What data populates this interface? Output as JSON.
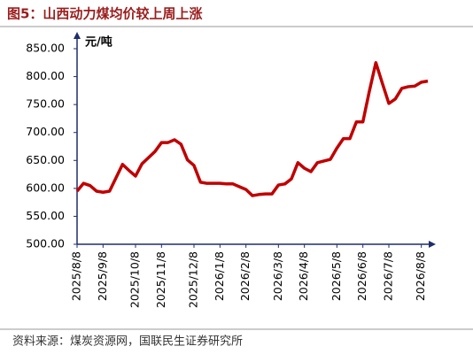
{
  "chart_data": {
    "type": "line",
    "title": "图5：山西动力煤均价较上周上涨",
    "y_unit": "元/吨",
    "source": "资料来源：煤炭资源网，国联民生证券研究所",
    "categories": [
      "2025/8/8",
      null,
      null,
      null,
      "2025/9/8",
      null,
      null,
      null,
      null,
      "2025/10/8",
      null,
      null,
      null,
      "2025/11/8",
      null,
      null,
      null,
      null,
      "2025/12/8",
      null,
      null,
      null,
      "2026/1/8",
      null,
      null,
      null,
      "2026/2/8",
      null,
      null,
      null,
      null,
      "2026/3/8",
      null,
      null,
      null,
      "2026/4/8",
      null,
      null,
      null,
      null,
      "2026/5/8",
      null,
      null,
      null,
      "2026/6/8",
      null,
      null,
      null,
      "2026/7/8",
      null,
      null,
      null,
      null,
      "2026/8/8",
      null
    ],
    "series": [
      {
        "name": "山西动力煤均价",
        "color": "#c00000",
        "values": [
          595,
          609,
          605,
          595,
          593,
          595,
          619,
          643,
          632,
          622,
          644,
          655,
          666,
          682,
          682,
          687,
          679,
          651,
          641,
          611,
          609,
          609,
          609,
          608,
          608,
          603,
          598,
          587,
          589,
          590,
          590,
          606,
          608,
          617,
          646,
          636,
          630,
          646,
          649,
          652,
          672,
          689,
          689,
          719,
          719,
          774,
          825,
          788,
          752,
          760,
          779,
          782,
          783,
          790,
          792
        ]
      }
    ],
    "ylim": [
      500,
      850
    ],
    "yticks": [
      {
        "value": 500,
        "label": "500.00"
      },
      {
        "value": 550,
        "label": "550.00"
      },
      {
        "value": 600,
        "label": "600.00"
      },
      {
        "value": 650,
        "label": "650.00"
      },
      {
        "value": 700,
        "label": "700.00"
      },
      {
        "value": 750,
        "label": "750.00"
      },
      {
        "value": 800,
        "label": "800.00"
      },
      {
        "value": 850,
        "label": "850.00"
      }
    ],
    "grid": false
  }
}
